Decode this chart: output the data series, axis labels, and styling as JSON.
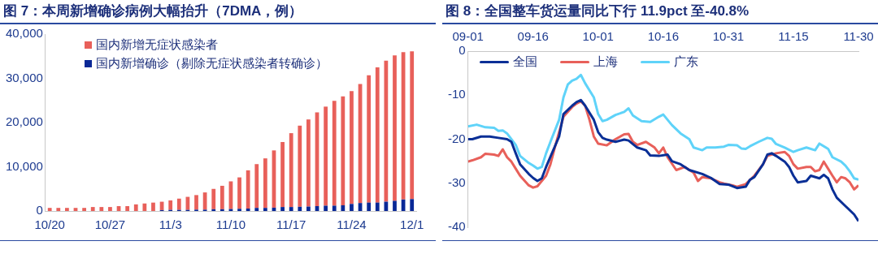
{
  "chart_data": [
    {
      "type": "bar",
      "title": "图 7：本周新增确诊病例大幅抬升（7DMA，例）",
      "stacked": true,
      "legend": "top left",
      "categories": [
        "10/20",
        null,
        null,
        null,
        null,
        null,
        null,
        "10/27",
        null,
        null,
        null,
        null,
        null,
        null,
        "11/3",
        null,
        null,
        null,
        null,
        null,
        null,
        "11/10",
        null,
        null,
        null,
        null,
        null,
        null,
        "11/17",
        null,
        null,
        null,
        null,
        null,
        null,
        "11/24",
        null,
        null,
        null,
        null,
        null,
        null,
        "12/1"
      ],
      "ylim": [
        0,
        40000
      ],
      "yticks": [
        {
          "value": 0,
          "label": "0"
        },
        {
          "value": 10000,
          "label": "10,000"
        },
        {
          "value": 20000,
          "label": "20,000"
        },
        {
          "value": 30000,
          "label": "30,000"
        },
        {
          "value": 40000,
          "label": "40,000"
        }
      ],
      "series": [
        {
          "name": "国内新增确诊（剔除无症状感染者转确诊）",
          "color": "#0a2896",
          "values": [
            0,
            0,
            0,
            0,
            0,
            0,
            0,
            0,
            0,
            0,
            0,
            0,
            0,
            200,
            250,
            250,
            250,
            300,
            300,
            400,
            400,
            450,
            500,
            550,
            700,
            700,
            750,
            900,
            900,
            950,
            1000,
            1100,
            1200,
            1200,
            1300,
            1600,
            1800,
            1900,
            1900,
            2100,
            2300,
            2600,
            2700
          ]
        },
        {
          "name": "国内新增无症状感染者",
          "color": "#e8605a",
          "values": [
            700,
            700,
            700,
            700,
            700,
            900,
            900,
            900,
            1100,
            1100,
            1500,
            1700,
            1900,
            1900,
            2150,
            2550,
            2950,
            3300,
            3900,
            4600,
            5300,
            6250,
            7100,
            8650,
            9900,
            11200,
            12950,
            14700,
            16700,
            18350,
            19700,
            21200,
            22400,
            23700,
            24600,
            25500,
            26900,
            28800,
            30600,
            31900,
            32900,
            33300,
            33400
          ]
        }
      ]
    },
    {
      "type": "line",
      "title": "图 8：全国整车货运量同比下行 11.9pct 至-40.8%",
      "legend": "top left",
      "xlim": [
        "--09-01",
        "--11-30"
      ],
      "xticks": [
        {
          "value": "--09-01",
          "label": "09-01"
        },
        {
          "value": "--09-16",
          "label": "09-16"
        },
        {
          "value": "--10-01",
          "label": "10-01"
        },
        {
          "value": "--10-16",
          "label": "10-16"
        },
        {
          "value": "--10-31",
          "label": "10-31"
        },
        {
          "value": "--11-15",
          "label": "11-15"
        },
        {
          "value": "--11-30",
          "label": "11-30"
        }
      ],
      "ylim": [
        -40,
        0
      ],
      "yticks": [
        -40,
        -30,
        -20,
        -10,
        0
      ],
      "series": [
        {
          "name": "全国",
          "color": "#0a2f96",
          "x": [
            "--09-01",
            "--09-02",
            "--09-04",
            "--09-06",
            "--09-08",
            "--09-10",
            "--09-11",
            "--09-12",
            "--09-13",
            "--09-15",
            "--09-16",
            "--09-17",
            "--09-18",
            "--09-19",
            "--09-20",
            "--09-22",
            "--09-23",
            "--09-25",
            "--09-26",
            "--09-27",
            "--09-28",
            "--09-30",
            "--10-01",
            "--10-02",
            "--10-03",
            "--10-05",
            "--10-07",
            "--10-08",
            "--10-10",
            "--10-12",
            "--10-13",
            "--10-15",
            "--10-17",
            "--10-18",
            "--10-20",
            "--10-22",
            "--10-25",
            "--10-27",
            "--10-29",
            "--10-31",
            "--11-02",
            "--11-04",
            "--11-05",
            "--11-06",
            "--11-08",
            "--11-09",
            "--11-10",
            "--11-11",
            "--11-13",
            "--11-14",
            "--11-15",
            "--11-16",
            "--11-18",
            "--11-19",
            "--11-21",
            "--11-22",
            "--11-23",
            "--11-24",
            "--11-25",
            "--11-27",
            "--11-29",
            "--11-30"
          ],
          "values": [
            -20.0,
            -20.0,
            -19.4,
            -19.4,
            -19.7,
            -20.0,
            -20.6,
            -23.2,
            -25.7,
            -27.9,
            -28.8,
            -29.5,
            -28.9,
            -26.3,
            -24.0,
            -19.4,
            -14.3,
            -12.4,
            -11.6,
            -11.1,
            -12.4,
            -15.6,
            -18.4,
            -19.7,
            -20.1,
            -20.6,
            -20.1,
            -20.3,
            -21.9,
            -22.5,
            -23.7,
            -23.8,
            -23.5,
            -25.0,
            -25.7,
            -27.0,
            -27.9,
            -28.8,
            -30.2,
            -30.3,
            -31.1,
            -30.8,
            -29.2,
            -28.6,
            -25.7,
            -23.5,
            -23.2,
            -23.8,
            -25.1,
            -26.3,
            -28.3,
            -29.8,
            -29.5,
            -28.3,
            -28.9,
            -28.1,
            -28.9,
            -31.4,
            -33.3,
            -35.2,
            -37.1,
            -38.6
          ]
        },
        {
          "name": "上海",
          "color": "#e8605a",
          "x": [
            "--09-01",
            "--09-02",
            "--09-04",
            "--09-05",
            "--09-07",
            "--09-08",
            "--09-09",
            "--09-10",
            "--09-11",
            "--09-12",
            "--09-13",
            "--09-15",
            "--09-16",
            "--09-17",
            "--09-19",
            "--09-20",
            "--09-21",
            "--09-23",
            "--09-25",
            "--09-26",
            "--09-27",
            "--09-28",
            "--09-29",
            "--09-30",
            "--10-01",
            "--10-03",
            "--10-05",
            "--10-07",
            "--10-08",
            "--10-09",
            "--10-10",
            "--10-12",
            "--10-14",
            "--10-15",
            "--10-16",
            "--10-17",
            "--10-19",
            "--10-21",
            "--10-22",
            "--10-23",
            "--10-24",
            "--10-25",
            "--10-27",
            "--10-29",
            "--10-30",
            "--11-01",
            "--11-02",
            "--11-04",
            "--11-06",
            "--11-08",
            "--11-09",
            "--11-11",
            "--11-13",
            "--11-14",
            "--11-15",
            "--11-16",
            "--11-18",
            "--11-19",
            "--11-20",
            "--11-21",
            "--11-22",
            "--11-23",
            "--11-24",
            "--11-25",
            "--11-26",
            "--11-27",
            "--11-28",
            "--11-29",
            "--11-30"
          ],
          "values": [
            -25.1,
            -24.8,
            -24.1,
            -23.3,
            -23.5,
            -23.8,
            -22.3,
            -24.1,
            -25.1,
            -26.7,
            -28.3,
            -30.5,
            -31.0,
            -30.7,
            -28.3,
            -25.7,
            -21.9,
            -14.9,
            -12.7,
            -11.9,
            -11.4,
            -12.4,
            -15.6,
            -19.4,
            -21.0,
            -21.4,
            -20.0,
            -18.9,
            -18.8,
            -20.6,
            -21.3,
            -20.6,
            -21.9,
            -23.2,
            -21.9,
            -24.1,
            -27.0,
            -26.3,
            -27.0,
            -27.6,
            -29.5,
            -28.6,
            -28.9,
            -29.8,
            -30.1,
            -30.5,
            -30.8,
            -30.2,
            -28.3,
            -25.7,
            -23.8,
            -23.2,
            -22.9,
            -23.8,
            -25.7,
            -26.7,
            -26.3,
            -26.3,
            -27.3,
            -27.0,
            -25.1,
            -26.7,
            -28.3,
            -29.8,
            -28.6,
            -28.9,
            -29.8,
            -31.4,
            -30.5
          ]
        },
        {
          "name": "广东",
          "color": "#5fd3f9",
          "x": [
            "--09-01",
            "--09-03",
            "--09-05",
            "--09-07",
            "--09-08",
            "--09-09",
            "--09-10",
            "--09-12",
            "--09-13",
            "--09-15",
            "--09-16",
            "--09-17",
            "--09-18",
            "--09-19",
            "--09-20",
            "--09-22",
            "--09-23",
            "--09-24",
            "--09-25",
            "--09-26",
            "--09-27",
            "--09-28",
            "--09-30",
            "--10-01",
            "--10-02",
            "--10-03",
            "--10-05",
            "--10-07",
            "--10-08",
            "--10-09",
            "--10-11",
            "--10-13",
            "--10-15",
            "--10-16",
            "--10-18",
            "--10-20",
            "--10-22",
            "--10-23",
            "--10-25",
            "--10-26",
            "--10-28",
            "--10-30",
            "--10-31",
            "--11-02",
            "--11-03",
            "--11-04",
            "--11-05",
            "--11-07",
            "--11-09",
            "--11-10",
            "--11-11",
            "--11-13",
            "--11-15",
            "--11-16",
            "--11-18",
            "--11-20",
            "--11-21",
            "--11-23",
            "--11-24",
            "--11-26",
            "--11-27",
            "--11-28",
            "--11-29",
            "--11-30"
          ],
          "values": [
            -17.1,
            -16.7,
            -17.3,
            -17.4,
            -18.1,
            -18.0,
            -18.7,
            -21.3,
            -23.8,
            -25.4,
            -26.0,
            -26.7,
            -26.3,
            -23.2,
            -20.6,
            -15.6,
            -10.5,
            -7.6,
            -6.7,
            -6.3,
            -5.4,
            -7.3,
            -10.5,
            -14.3,
            -15.9,
            -15.6,
            -14.5,
            -13.8,
            -13.0,
            -14.6,
            -15.9,
            -16.1,
            -14.9,
            -14.4,
            -16.8,
            -18.7,
            -20.0,
            -21.9,
            -22.5,
            -21.9,
            -21.9,
            -21.7,
            -21.3,
            -21.4,
            -22.1,
            -22.2,
            -21.6,
            -20.6,
            -19.7,
            -19.9,
            -21.1,
            -21.9,
            -22.9,
            -22.5,
            -21.9,
            -22.5,
            -21.0,
            -22.2,
            -24.1,
            -25.1,
            -26.0,
            -27.3,
            -28.9,
            -29.2
          ]
        }
      ]
    }
  ]
}
